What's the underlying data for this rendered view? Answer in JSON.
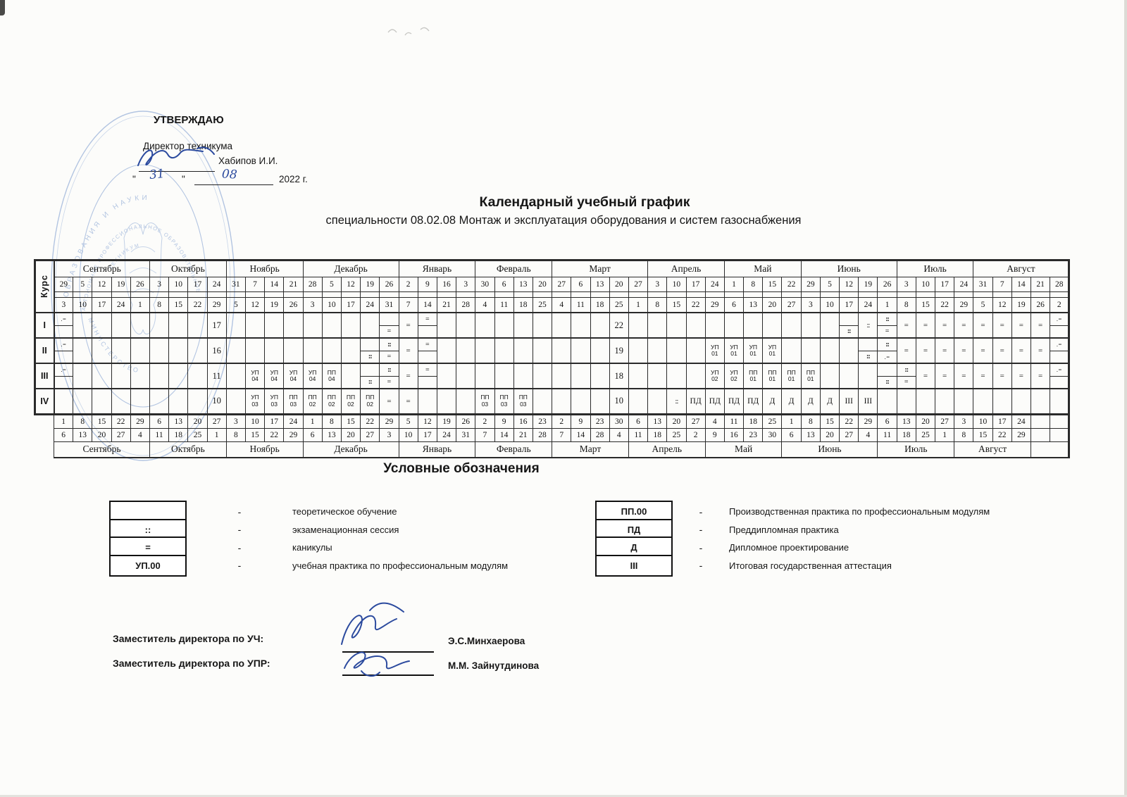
{
  "title": {
    "main": "Календарный учебный график",
    "sub": "специальности 08.02.08 Монтаж и эксплуатация оборудования и систем газоснабжения"
  },
  "approval": {
    "heading": "УТВЕРЖДАЮ",
    "role": "Директор техникума",
    "name": "Хабипов И.И.",
    "quote_open": "\"",
    "day": "31",
    "quote_close": "\"",
    "month_num": "08",
    "year": "2022 г."
  },
  "stamp": {
    "ring_top": "ОБРАЗОВАНИЯ И НАУКИ",
    "ring_inner": "АВТОНОМНОЕ ПРОФЕССИОНАЛЬНОЕ ОБРАЗОВАТЕЛЬНОЕ",
    "ring_bottom": "МИНИСТЕРСТВО",
    "ring_small": "ТЕХНИКУМ"
  },
  "calendar": {
    "course_label": "Курс",
    "months_top": [
      {
        "name": "Сентябрь",
        "span": 5
      },
      {
        "name": "Октябрь",
        "span": 4
      },
      {
        "name": "Ноябрь",
        "span": 4
      },
      {
        "name": "Декабрь",
        "span": 5
      },
      {
        "name": "Январь",
        "span": 4
      },
      {
        "name": "Февраль",
        "span": 4
      },
      {
        "name": "Март",
        "span": 5
      },
      {
        "name": "Апрель",
        "span": 4
      },
      {
        "name": "Май",
        "span": 4
      },
      {
        "name": "Июнь",
        "span": 5
      },
      {
        "name": "Июль",
        "span": 4
      },
      {
        "name": "Август",
        "span": 5
      }
    ],
    "week_start": [
      "29",
      "5",
      "12",
      "19",
      "26",
      "3",
      "10",
      "17",
      "24",
      "31",
      "7",
      "14",
      "21",
      "28",
      "5",
      "12",
      "19",
      "26",
      "2",
      "9",
      "16",
      "3",
      "30",
      "6",
      "13",
      "20",
      "27",
      "6",
      "13",
      "20",
      "27",
      "3",
      "10",
      "17",
      "24",
      "1",
      "8",
      "15",
      "22",
      "29",
      "5",
      "12",
      "19",
      "26",
      "3",
      "10",
      "17",
      "24",
      "31",
      "7",
      "14",
      "21",
      "28"
    ],
    "week_end": [
      "3",
      "10",
      "17",
      "24",
      "1",
      "8",
      "15",
      "22",
      "29",
      "5",
      "12",
      "19",
      "26",
      "3",
      "10",
      "17",
      "24",
      "31",
      "7",
      "14",
      "21",
      "28",
      "4",
      "11",
      "18",
      "25",
      "4",
      "11",
      "18",
      "25",
      "1",
      "8",
      "15",
      "22",
      "29",
      "6",
      "13",
      "20",
      "27",
      "3",
      "10",
      "17",
      "24",
      "1",
      "8",
      "15",
      "22",
      "29",
      "5",
      "12",
      "19",
      "26",
      "2"
    ],
    "courses": [
      {
        "label": "I",
        "marks": [
          {
            "c": 1,
            "sp": [
              ".=",
              ""
            ]
          },
          {
            "c": 9,
            "v": "17"
          },
          {
            "c": 18,
            "sp": [
              "",
              "="
            ]
          },
          {
            "c": 19,
            "v": "="
          },
          {
            "c": 20,
            "sp": [
              "=",
              ""
            ]
          },
          {
            "c": 30,
            "v": "22"
          },
          {
            "c": 42,
            "sp": [
              "",
              "::"
            ]
          },
          {
            "c": 43,
            "v": "::"
          },
          {
            "c": 44,
            "sp": [
              "::",
              "="
            ]
          },
          {
            "c": 45,
            "v": "="
          },
          {
            "c": 46,
            "v": "="
          },
          {
            "c": 47,
            "v": "="
          },
          {
            "c": 48,
            "v": "="
          },
          {
            "c": 49,
            "v": "="
          },
          {
            "c": 50,
            "v": "="
          },
          {
            "c": 51,
            "v": "="
          },
          {
            "c": 52,
            "v": "="
          },
          {
            "c": 53,
            "sp": [
              ".=",
              ""
            ]
          }
        ]
      },
      {
        "label": "II",
        "marks": [
          {
            "c": 1,
            "sp": [
              ".=",
              ""
            ]
          },
          {
            "c": 9,
            "v": "16"
          },
          {
            "c": 17,
            "sp": [
              "",
              "::"
            ]
          },
          {
            "c": 18,
            "sp": [
              "::",
              "="
            ]
          },
          {
            "c": 19,
            "v": "="
          },
          {
            "c": 20,
            "sp": [
              "=",
              ""
            ]
          },
          {
            "c": 30,
            "v": "19"
          },
          {
            "c": 35,
            "l2": [
              "УП",
              "01"
            ]
          },
          {
            "c": 36,
            "l2": [
              "УП",
              "01"
            ]
          },
          {
            "c": 37,
            "l2": [
              "УП",
              "01"
            ]
          },
          {
            "c": 38,
            "l2": [
              "УП",
              "01"
            ]
          },
          {
            "c": 43,
            "sp": [
              "",
              "::"
            ]
          },
          {
            "c": 44,
            "sp": [
              "::",
              ".="
            ]
          },
          {
            "c": 45,
            "v": "="
          },
          {
            "c": 46,
            "v": "="
          },
          {
            "c": 47,
            "v": "="
          },
          {
            "c": 48,
            "v": "="
          },
          {
            "c": 49,
            "v": "="
          },
          {
            "c": 50,
            "v": "="
          },
          {
            "c": 51,
            "v": "="
          },
          {
            "c": 52,
            "v": "="
          },
          {
            "c": 53,
            "sp": [
              ".=",
              ""
            ]
          }
        ]
      },
      {
        "label": "III",
        "marks": [
          {
            "c": 1,
            "sp": [
              ".=",
              ""
            ]
          },
          {
            "c": 9,
            "v": "11"
          },
          {
            "c": 11,
            "l2": [
              "УП",
              "04"
            ]
          },
          {
            "c": 12,
            "l2": [
              "УП",
              "04"
            ]
          },
          {
            "c": 13,
            "l2": [
              "УП",
              "04"
            ]
          },
          {
            "c": 14,
            "l2": [
              "УП",
              "04"
            ]
          },
          {
            "c": 15,
            "l2": [
              "ПП",
              "04"
            ]
          },
          {
            "c": 17,
            "sp": [
              "",
              "::"
            ]
          },
          {
            "c": 18,
            "sp": [
              "::",
              "="
            ]
          },
          {
            "c": 19,
            "v": "="
          },
          {
            "c": 20,
            "sp": [
              "=",
              ""
            ]
          },
          {
            "c": 30,
            "v": "18"
          },
          {
            "c": 35,
            "l2": [
              "УП",
              "02"
            ]
          },
          {
            "c": 36,
            "l2": [
              "УП",
              "02"
            ]
          },
          {
            "c": 37,
            "l2": [
              "ПП",
              "01"
            ]
          },
          {
            "c": 38,
            "l2": [
              "ПП",
              "01"
            ]
          },
          {
            "c": 39,
            "l2": [
              "ПП",
              "01"
            ]
          },
          {
            "c": 40,
            "l2": [
              "ПП",
              "01"
            ]
          },
          {
            "c": 44,
            "sp": [
              "",
              "::"
            ]
          },
          {
            "c": 45,
            "sp": [
              "::",
              "="
            ]
          },
          {
            "c": 46,
            "v": "="
          },
          {
            "c": 47,
            "v": "="
          },
          {
            "c": 48,
            "v": "="
          },
          {
            "c": 49,
            "v": "="
          },
          {
            "c": 50,
            "v": "="
          },
          {
            "c": 51,
            "v": "="
          },
          {
            "c": 52,
            "v": "="
          },
          {
            "c": 53,
            "sp": [
              ".=",
              ""
            ]
          }
        ]
      },
      {
        "label": "IV",
        "marks": [
          {
            "c": 9,
            "v": "10"
          },
          {
            "c": 11,
            "l2": [
              "УП",
              "03"
            ]
          },
          {
            "c": 12,
            "l2": [
              "УП",
              "03"
            ]
          },
          {
            "c": 13,
            "l2": [
              "ПП",
              "03"
            ]
          },
          {
            "c": 14,
            "l2": [
              "ПП",
              "02"
            ]
          },
          {
            "c": 15,
            "l2": [
              "ПП",
              "02"
            ]
          },
          {
            "c": 16,
            "l2": [
              "ПП",
              "02"
            ]
          },
          {
            "c": 17,
            "l2": [
              "ПП",
              "02"
            ]
          },
          {
            "c": 18,
            "v": "="
          },
          {
            "c": 19,
            "v": "="
          },
          {
            "c": 23,
            "l2": [
              "ПП",
              "03"
            ]
          },
          {
            "c": 24,
            "l2": [
              "ПП",
              "03"
            ]
          },
          {
            "c": 25,
            "l2": [
              "ПП",
              "03"
            ]
          },
          {
            "c": 30,
            "v": "10"
          },
          {
            "c": 33,
            "v": "::"
          },
          {
            "c": 34,
            "v": "ПД"
          },
          {
            "c": 35,
            "v": "ПД"
          },
          {
            "c": 36,
            "v": "ПД"
          },
          {
            "c": 37,
            "v": "ПД"
          },
          {
            "c": 38,
            "v": "Д"
          },
          {
            "c": 39,
            "v": "Д"
          },
          {
            "c": 40,
            "v": "Д"
          },
          {
            "c": 41,
            "v": "Д"
          },
          {
            "c": 42,
            "v": "III"
          },
          {
            "c": 43,
            "v": "III"
          }
        ]
      }
    ],
    "footer": {
      "week_start": [
        "1",
        "8",
        "15",
        "22",
        "29",
        "6",
        "13",
        "20",
        "27",
        "3",
        "10",
        "17",
        "24",
        "1",
        "8",
        "15",
        "22",
        "29",
        "5",
        "12",
        "19",
        "26",
        "2",
        "9",
        "16",
        "23",
        "2",
        "9",
        "23",
        "30",
        "6",
        "13",
        "20",
        "27",
        "4",
        "11",
        "18",
        "25",
        "1",
        "8",
        "15",
        "22",
        "29",
        "6",
        "13",
        "20",
        "27",
        "3",
        "10",
        "17",
        "24",
        "",
        ""
      ],
      "week_end": [
        "6",
        "13",
        "20",
        "27",
        "4",
        "11",
        "18",
        "25",
        "1",
        "8",
        "15",
        "22",
        "29",
        "6",
        "13",
        "20",
        "27",
        "3",
        "10",
        "17",
        "24",
        "31",
        "7",
        "14",
        "21",
        "28",
        "7",
        "14",
        "28",
        "4",
        "11",
        "18",
        "25",
        "2",
        "9",
        "16",
        "23",
        "30",
        "6",
        "13",
        "20",
        "27",
        "4",
        "11",
        "18",
        "25",
        "1",
        "8",
        "15",
        "22",
        "29",
        "",
        ""
      ],
      "months": [
        {
          "name": "Сентябрь",
          "span": 5
        },
        {
          "name": "Октябрь",
          "span": 4
        },
        {
          "name": "Ноябрь",
          "span": 4
        },
        {
          "name": "Декабрь",
          "span": 5
        },
        {
          "name": "Январь",
          "span": 4
        },
        {
          "name": "Февраль",
          "span": 4
        },
        {
          "name": "Март",
          "span": 4
        },
        {
          "name": "Апрель",
          "span": 4
        },
        {
          "name": "Май",
          "span": 4
        },
        {
          "name": "Июнь",
          "span": 5
        },
        {
          "name": "Июль",
          "span": 4
        },
        {
          "name": "Август",
          "span": 4
        },
        {
          "name": "",
          "span": 2
        }
      ]
    }
  },
  "legend": {
    "heading": "Условные обозначения",
    "dash": "-",
    "left": [
      {
        "symbol": "",
        "desc": "теоретическое обучение"
      },
      {
        "symbol": "::",
        "desc": "экзаменационная сессия"
      },
      {
        "symbol": "=",
        "desc": "каникулы"
      },
      {
        "symbol": "УП.00",
        "desc": "учебная практика по профессиональным модулям"
      }
    ],
    "right": [
      {
        "symbol": "ПП.00",
        "desc": "Производственная практика по профессиональным модулям"
      },
      {
        "symbol": "ПД",
        "desc": "Преддипломная практика"
      },
      {
        "symbol": "Д",
        "desc": "Дипломное проектирование"
      },
      {
        "symbol": "III",
        "desc": "Итоговая государственная аттестация"
      }
    ]
  },
  "signatures": {
    "rows": [
      {
        "role": "Заместитель директора по УЧ:",
        "name": "Э.С.Минхаерова"
      },
      {
        "role": "Заместитель директора по УПР:",
        "name": "М.М. Зайнутдинова"
      }
    ]
  }
}
